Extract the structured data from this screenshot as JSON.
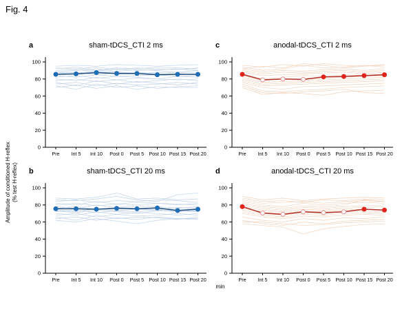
{
  "figure": {
    "label": "Fig. 4"
  },
  "y_axis_label_line1": "Amplitude of conditioned H-reflex",
  "y_axis_label_line2": "(% test H-reflex)",
  "x_unit_label": "min",
  "colors": {
    "axis": "#000000",
    "sham": {
      "mean_line": "#1a4a7a",
      "marker": "#1f6db5",
      "open_stroke": "#7fa8d0",
      "trace": "#b9cde6"
    },
    "anodal": {
      "mean_line": "#b03028",
      "marker": "#e0241c",
      "open_stroke": "#e29a9a",
      "trace": "#f2cdb4"
    }
  },
  "chart_data": [
    {
      "type": "line",
      "panel": "a",
      "title": "sham-tDCS_CTI 2 ms",
      "color_key": "sham",
      "categories": [
        "Pre",
        "Int 5",
        "Int 10",
        "Post 0",
        "Post 5",
        "Post 10",
        "Post 15",
        "Post 20"
      ],
      "xlabel": "min",
      "ylabel": "Amplitude of conditioned H-reflex (% test H-reflex)",
      "ylim": [
        0,
        105
      ],
      "yticks": [
        0,
        20,
        40,
        60,
        80,
        100
      ],
      "grid": false,
      "legend": "none",
      "mean_series": {
        "name": "group mean",
        "values": [
          85.5,
          86,
          87.5,
          86.5,
          86.5,
          85,
          85.5,
          85.5
        ],
        "open_markers": [
          false,
          false,
          false,
          false,
          false,
          false,
          false,
          false
        ]
      },
      "individual_traces": [
        [
          95,
          96,
          95,
          97,
          96,
          95,
          96,
          97
        ],
        [
          93,
          92,
          94,
          91,
          93,
          92,
          91,
          93
        ],
        [
          90,
          91,
          89,
          92,
          90,
          91,
          92,
          90
        ],
        [
          88,
          87,
          89,
          88,
          86,
          88,
          87,
          88
        ],
        [
          86,
          88,
          85,
          87,
          88,
          86,
          85,
          86
        ],
        [
          84,
          82,
          85,
          83,
          84,
          85,
          83,
          84
        ],
        [
          82,
          84,
          81,
          83,
          82,
          80,
          83,
          82
        ],
        [
          80,
          78,
          82,
          79,
          81,
          80,
          79,
          80
        ],
        [
          78,
          80,
          77,
          79,
          76,
          78,
          80,
          78
        ],
        [
          76,
          72,
          78,
          74,
          77,
          75,
          73,
          76
        ],
        [
          74,
          76,
          72,
          75,
          73,
          74,
          76,
          74
        ],
        [
          72,
          68,
          74,
          70,
          72,
          69,
          71,
          72
        ],
        [
          70,
          73,
          69,
          72,
          68,
          71,
          70,
          70
        ],
        [
          88,
          90,
          92,
          89,
          91,
          90,
          88,
          90
        ],
        [
          92,
          94,
          90,
          93,
          92,
          94,
          93,
          92
        ]
      ]
    },
    {
      "type": "line",
      "panel": "c",
      "title": "anodal-tDCS_CTI 2 ms",
      "color_key": "anodal",
      "categories": [
        "Pre",
        "Int 5",
        "Int 10",
        "Post 0",
        "Post 5",
        "Post 10",
        "Post 15",
        "Post 20"
      ],
      "xlabel": "min",
      "ylabel": "Amplitude of conditioned H-reflex (% test H-reflex)",
      "ylim": [
        0,
        105
      ],
      "yticks": [
        0,
        20,
        40,
        60,
        80,
        100
      ],
      "grid": false,
      "legend": "none",
      "mean_series": {
        "name": "group mean",
        "values": [
          85.5,
          79,
          80,
          79.5,
          82.5,
          83,
          84,
          85
        ],
        "open_markers": [
          false,
          true,
          true,
          true,
          false,
          false,
          false,
          false
        ]
      },
      "individual_traces": [
        [
          96,
          94,
          97,
          95,
          98,
          96,
          95,
          97
        ],
        [
          94,
          90,
          92,
          96,
          93,
          94,
          96,
          94
        ],
        [
          92,
          88,
          90,
          89,
          91,
          92,
          90,
          92
        ],
        [
          90,
          86,
          88,
          87,
          89,
          90,
          88,
          90
        ],
        [
          88,
          84,
          85,
          86,
          87,
          88,
          86,
          88
        ],
        [
          86,
          80,
          82,
          84,
          83,
          85,
          84,
          86
        ],
        [
          84,
          78,
          80,
          79,
          81,
          82,
          83,
          84
        ],
        [
          82,
          76,
          77,
          78,
          79,
          80,
          81,
          82
        ],
        [
          80,
          74,
          75,
          76,
          77,
          78,
          79,
          80
        ],
        [
          78,
          72,
          73,
          74,
          75,
          76,
          77,
          78
        ],
        [
          76,
          70,
          68,
          71,
          72,
          73,
          74,
          75
        ],
        [
          74,
          66,
          65,
          67,
          68,
          70,
          71,
          72
        ],
        [
          72,
          64,
          63,
          65,
          66,
          68,
          64,
          63
        ],
        [
          70,
          62,
          64,
          63,
          61,
          65,
          66,
          67
        ],
        [
          92,
          95,
          93,
          98,
          96,
          93,
          95,
          96
        ]
      ]
    },
    {
      "type": "line",
      "panel": "b",
      "title": "sham-tDCS_CTI 20 ms",
      "color_key": "sham",
      "categories": [
        "Pre",
        "Int 5",
        "Int 10",
        "Post 0",
        "Post 5",
        "Post 10",
        "Post 15",
        "Post 20"
      ],
      "xlabel": "min",
      "ylabel": "Amplitude of conditioned H-reflex (% test H-reflex)",
      "ylim": [
        0,
        105
      ],
      "yticks": [
        0,
        20,
        40,
        60,
        80,
        100
      ],
      "grid": false,
      "legend": "none",
      "mean_series": {
        "name": "group mean",
        "values": [
          75.5,
          75.5,
          75,
          76,
          75.5,
          76.5,
          73.5,
          75
        ],
        "open_markers": [
          false,
          false,
          false,
          false,
          false,
          false,
          false,
          false
        ]
      },
      "individual_traces": [
        [
          86,
          85,
          87,
          90,
          86,
          84,
          92,
          94
        ],
        [
          84,
          86,
          83,
          85,
          84,
          86,
          85,
          83
        ],
        [
          82,
          80,
          84,
          81,
          83,
          82,
          80,
          82
        ],
        [
          80,
          82,
          79,
          81,
          80,
          82,
          81,
          80
        ],
        [
          78,
          76,
          80,
          77,
          79,
          78,
          76,
          78
        ],
        [
          76,
          78,
          75,
          77,
          76,
          74,
          77,
          76
        ],
        [
          74,
          72,
          76,
          73,
          75,
          74,
          72,
          74
        ],
        [
          72,
          74,
          71,
          73,
          72,
          74,
          73,
          72
        ],
        [
          70,
          68,
          72,
          69,
          71,
          70,
          68,
          70
        ],
        [
          68,
          70,
          66,
          69,
          67,
          68,
          70,
          68
        ],
        [
          66,
          62,
          68,
          64,
          66,
          65,
          63,
          66
        ],
        [
          62,
          60,
          64,
          61,
          58,
          62,
          64,
          63
        ],
        [
          64,
          66,
          62,
          65,
          63,
          66,
          64,
          64
        ],
        [
          88,
          87,
          89,
          94,
          87,
          88,
          86,
          87
        ],
        [
          73,
          71,
          74,
          72,
          70,
          73,
          74,
          73
        ]
      ]
    },
    {
      "type": "line",
      "panel": "d",
      "title": "anodal-tDCS_CTI 20 ms",
      "color_key": "anodal",
      "categories": [
        "Pre",
        "Int 5",
        "Int 10",
        "Post 0",
        "Post 5",
        "Post 10",
        "Post 15",
        "Post 20"
      ],
      "xlabel": "min",
      "ylabel": "Amplitude of conditioned H-reflex (% test H-reflex)",
      "ylim": [
        0,
        105
      ],
      "yticks": [
        0,
        20,
        40,
        60,
        80,
        100
      ],
      "grid": false,
      "legend": "none",
      "mean_series": {
        "name": "group mean",
        "values": [
          78,
          70.5,
          69,
          72,
          71,
          72,
          75,
          74
        ],
        "open_markers": [
          false,
          true,
          true,
          true,
          true,
          true,
          false,
          false
        ]
      },
      "individual_traces": [
        [
          90,
          86,
          88,
          85,
          87,
          88,
          89,
          88
        ],
        [
          88,
          84,
          85,
          83,
          86,
          85,
          87,
          86
        ],
        [
          86,
          82,
          83,
          84,
          82,
          84,
          85,
          84
        ],
        [
          84,
          80,
          78,
          82,
          80,
          82,
          83,
          82
        ],
        [
          82,
          78,
          76,
          79,
          78,
          80,
          86,
          84
        ],
        [
          80,
          76,
          74,
          77,
          76,
          78,
          79,
          80
        ],
        [
          78,
          74,
          72,
          75,
          74,
          76,
          77,
          78
        ],
        [
          76,
          72,
          70,
          73,
          72,
          74,
          75,
          74
        ],
        [
          74,
          70,
          68,
          71,
          70,
          72,
          73,
          72
        ],
        [
          72,
          68,
          66,
          69,
          68,
          70,
          71,
          70
        ],
        [
          70,
          66,
          64,
          67,
          66,
          68,
          69,
          68
        ],
        [
          66,
          62,
          60,
          64,
          62,
          65,
          64,
          66
        ],
        [
          62,
          58,
          56,
          60,
          58,
          61,
          62,
          63
        ],
        [
          58,
          56,
          54,
          46,
          52,
          55,
          57,
          58
        ],
        [
          60,
          60,
          58,
          56,
          57,
          59,
          60,
          61
        ]
      ]
    }
  ]
}
